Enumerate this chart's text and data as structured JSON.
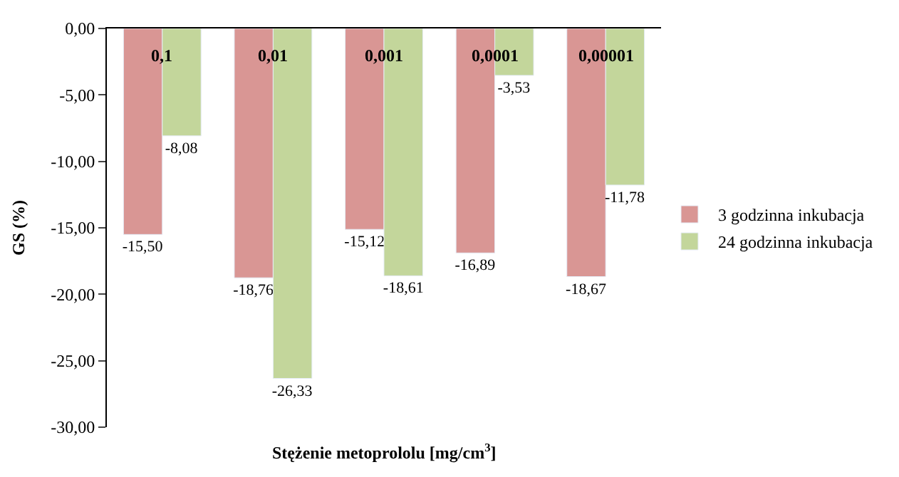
{
  "chart_data": {
    "type": "bar",
    "xlabel": "Stężenie metoprololu [mg/cm$^{3}$]",
    "ylabel": "GS (%)",
    "categories": [
      "0,1",
      "0,01",
      "0,001",
      "0,0001",
      "0,00001"
    ],
    "series": [
      {
        "name": "3 godzinna inkubacja",
        "color": "#d99694",
        "values": [
          -15.5,
          -18.76,
          -15.12,
          -16.89,
          -18.67
        ],
        "value_labels": [
          "-15,50",
          "-18,76",
          "-15,12",
          "-16,89",
          "-18,67"
        ]
      },
      {
        "name": "24 godzinna inkubacja",
        "color": "#c3d69b",
        "values": [
          -8.08,
          -26.33,
          -18.61,
          -3.53,
          -11.78
        ],
        "value_labels": [
          "-8,08",
          "-26,33",
          "-18,61",
          "-3,53",
          "-11,78"
        ]
      }
    ],
    "ylim": [
      -30,
      0
    ],
    "yticks": [
      {
        "value": 0,
        "label": "0,00"
      },
      {
        "value": -5,
        "label": "-5,00"
      },
      {
        "value": -10,
        "label": "-10,00"
      },
      {
        "value": -15,
        "label": "-15,00"
      },
      {
        "value": -20,
        "label": "-20,00"
      },
      {
        "value": -25,
        "label": "-25,00"
      },
      {
        "value": -30,
        "label": "-30,00"
      }
    ],
    "legend": "right"
  }
}
